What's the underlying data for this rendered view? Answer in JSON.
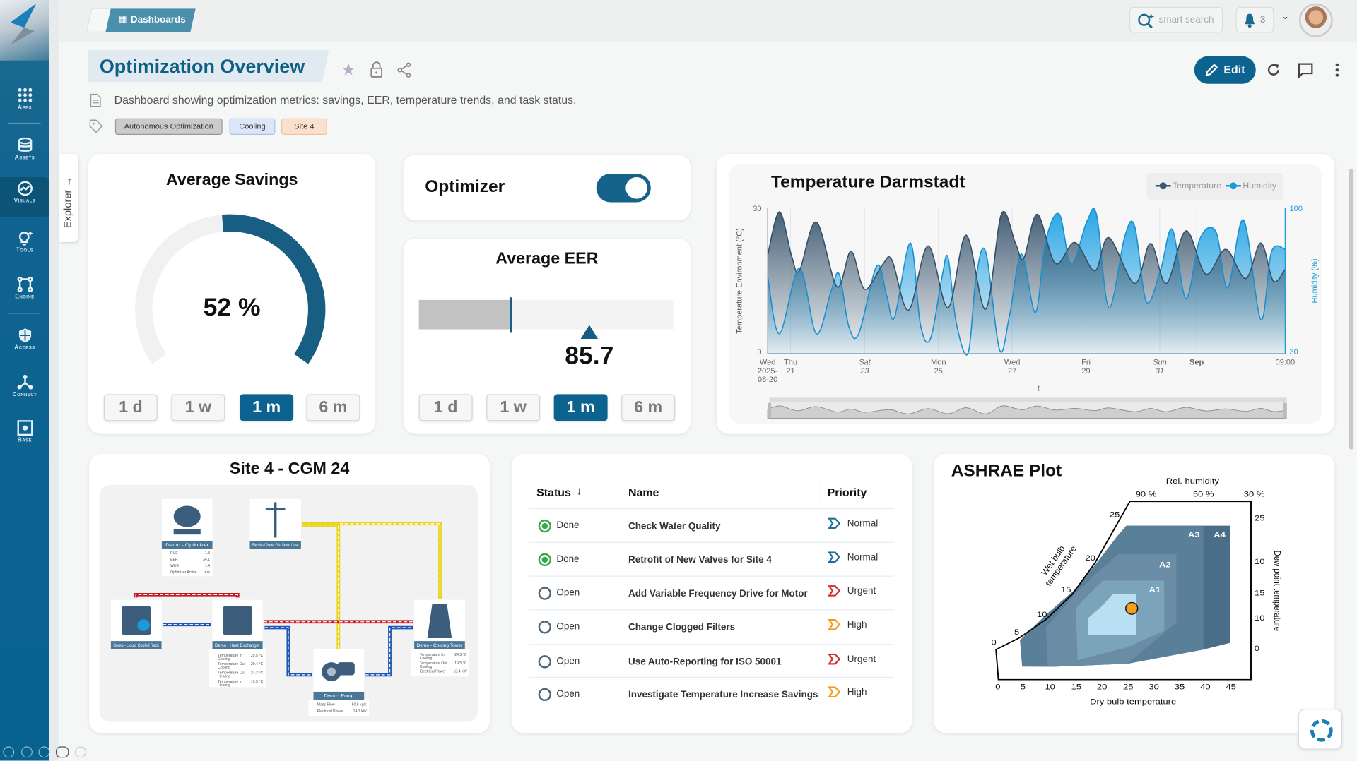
{
  "sidebar": {
    "items": [
      {
        "label": "Apps",
        "icon": "apps-grid-icon"
      },
      {
        "label": "Assets",
        "icon": "database-icon"
      },
      {
        "label": "Visuals",
        "icon": "chart-circle-icon"
      },
      {
        "label": "Tools",
        "icon": "lightbulb-icon"
      },
      {
        "label": "Engine",
        "icon": "engine-icon"
      },
      {
        "label": "Access",
        "icon": "shield-icon"
      },
      {
        "label": "Connect",
        "icon": "connect-icon"
      },
      {
        "label": "Base",
        "icon": "base-icon"
      }
    ],
    "active": "Visuals"
  },
  "explorer_tab": "Explorer →",
  "topbar": {
    "breadcrumb": "Dashboards",
    "search_placeholder": "smart search",
    "notification_count": "3"
  },
  "page": {
    "title": "Optimization Overview",
    "description": "Dashboard showing optimization metrics: savings, EER, temperature trends, and task status.",
    "tags": [
      "Autonomous Optimization",
      "Cooling",
      "Site 4"
    ],
    "edit_label": "Edit"
  },
  "savings": {
    "title": "Average Savings",
    "value_text": "52 %",
    "value_percent": 52,
    "ranges": [
      "1 d",
      "1 w",
      "1 m",
      "6 m"
    ],
    "active_range": 2
  },
  "optimizer": {
    "label": "Optimizer",
    "enabled": true
  },
  "eer": {
    "title": "Average EER",
    "value_text": "85.7",
    "bar_fraction": 0.36,
    "marker_fraction": 0.67,
    "ranges": [
      "1 d",
      "1 w",
      "1 m",
      "6 m"
    ],
    "active_range": 2
  },
  "chart_data": [
    {
      "type": "area",
      "title": "Temperature Darmstadt",
      "xlabel": "t",
      "ylabel": "Temperature Environment (°C)",
      "y2label": "Humidity (%)",
      "x_unit": "days since 2025-08-20 09:00",
      "xlim": [
        0,
        14.03
      ],
      "ylim": [
        0,
        30
      ],
      "y2lim": [
        30,
        100
      ],
      "yticks": [
        "0",
        "30"
      ],
      "y2ticks": [
        "30",
        "100"
      ],
      "xticks": [
        {
          "x": 0,
          "lines": [
            "Wed",
            "2025-",
            "08-20"
          ],
          "style": "normal"
        },
        {
          "x": 0.62,
          "lines": [
            "Thu",
            "21"
          ],
          "style": "normal"
        },
        {
          "x": 2.63,
          "lines": [
            "Sat",
            "23"
          ],
          "style": "italic"
        },
        {
          "x": 4.63,
          "lines": [
            "Mon",
            "25"
          ],
          "style": "normal"
        },
        {
          "x": 6.63,
          "lines": [
            "Wed",
            "27"
          ],
          "style": "normal"
        },
        {
          "x": 8.63,
          "lines": [
            "Fri",
            "29"
          ],
          "style": "normal"
        },
        {
          "x": 10.63,
          "lines": [
            "Sun",
            "31"
          ],
          "style": "italic"
        },
        {
          "x": 11.63,
          "lines": [
            "Sep"
          ],
          "style": "bold"
        },
        {
          "x": 14.03,
          "lines": [
            "09:00"
          ],
          "style": "normal"
        }
      ],
      "legend": {
        "position": "top-right",
        "entries": [
          "Temperature",
          "Humidity"
        ]
      },
      "series": [
        {
          "name": "Temperature",
          "axis": "left",
          "color": "#3c5870",
          "x": [
            0,
            0.32,
            0.65,
            0.86,
            1.32,
            1.88,
            2.26,
            2.63,
            3.12,
            3.37,
            3.82,
            4.35,
            4.89,
            5.38,
            5.91,
            6.34,
            6.72,
            6.94,
            7.31,
            7.8,
            8.33,
            8.87,
            9.25,
            9.95,
            10.38,
            10.81,
            11.34,
            11.88,
            12.42,
            12.96,
            13.37,
            13.71,
            14.03
          ],
          "y": [
            20.2,
            29.1,
            20,
            17,
            27,
            13.7,
            21,
            13.2,
            18.3,
            19.2,
            8.9,
            22.1,
            9.4,
            24.3,
            9.1,
            28.7,
            22.6,
            19.5,
            28.6,
            18.5,
            22.8,
            17,
            23.8,
            14.4,
            22.6,
            14.4,
            25.2,
            16.3,
            21.4,
            15.4,
            22.7,
            14.9,
            17.3
          ]
        },
        {
          "name": "Humidity",
          "axis": "right",
          "color": "#1a9ad6",
          "x": [
            0,
            0.32,
            0.86,
            1.32,
            1.72,
            1.94,
            2.2,
            2.47,
            2.96,
            3.23,
            3.44,
            3.87,
            4.14,
            4.41,
            4.73,
            4.89,
            5.11,
            5.43,
            5.65,
            5.91,
            6.29,
            6.56,
            6.88,
            7.26,
            7.53,
            7.9,
            8.23,
            8.66,
            8.92,
            9.25,
            9.68,
            9.95,
            10.27,
            10.65,
            10.97,
            11.34,
            11.72,
            12.15,
            12.47,
            12.9,
            13.37,
            13.66,
            14.03
          ],
          "y": [
            67,
            39.5,
            71,
            39.5,
            60,
            68,
            43,
            39.5,
            72,
            57.5,
            47.4,
            83,
            44,
            37,
            67,
            76,
            45,
            30,
            66.5,
            78.8,
            31.7,
            48.5,
            77.7,
            49.7,
            83.4,
            96.9,
            73,
            93.5,
            96.3,
            52,
            86,
            91,
            54.7,
            70,
            89.5,
            56.4,
            85,
            88.4,
            61.5,
            94,
            46.3,
            78.8,
            80
          ]
        }
      ]
    },
    {
      "type": "psychrometric",
      "title": "ASHRAE Plot",
      "xlabel": "Dry bulb temperature",
      "xticks": [
        "0",
        "5",
        "10",
        "15",
        "20",
        "25",
        "30",
        "35",
        "40",
        "45"
      ],
      "wet_bulb_label": "Wet bulb temperature",
      "wet_bulb_ticks": [
        "0",
        "5",
        "10",
        "15",
        "20",
        "25"
      ],
      "rh_label": "Rel. humidity",
      "rh_ticks": [
        "90 %",
        "50 %",
        "30 %"
      ],
      "dew_point_label": "Dew point temperature",
      "dew_point_ticks": [
        "25",
        "10",
        "15",
        "10",
        "0"
      ],
      "zones": [
        "A1",
        "A2",
        "A3",
        "A4"
      ],
      "point": {
        "dry_bulb": 25.5,
        "zone": "recommended"
      }
    }
  ],
  "site": {
    "title": "Site 4 - CGM 24",
    "nodes": [
      {
        "label": "Demo - Optimizer",
        "stats": [
          [
            "PUE",
            "1.3"
          ],
          [
            "EER",
            "34.1"
          ],
          [
            "WUE",
            "1.4"
          ],
          [
            "Optimizer Active",
            "true"
          ]
        ]
      },
      {
        "label": "Electrical Power Grid Demo Case",
        "stats": []
      },
      {
        "label": "Demo - Liquid Cooled Rack",
        "stats": []
      },
      {
        "label": "Demo - Heat Exchanger",
        "stats": [
          [
            "Temperature In Cooling",
            "25.5 °C"
          ],
          [
            "Temperature Out Cooling",
            "20.4 °C"
          ],
          [
            "Temperature Out Heating",
            "24.3 °C"
          ],
          [
            "Temperature In Heating",
            "19.5 °C"
          ]
        ]
      },
      {
        "label": "Demo - Pump",
        "stats": [
          [
            "Mass Flow",
            "50.6 kg/s"
          ],
          [
            "Electrical Power",
            "14.7 kW"
          ]
        ]
      },
      {
        "label": "Demo - Cooling Tower",
        "stats": [
          [
            "Temperature In Cooling",
            "24.3 °C"
          ],
          [
            "Temperature Out Cooling",
            "19.5 °C"
          ],
          [
            "Electrical Power",
            "13.4 kW"
          ]
        ]
      }
    ]
  },
  "tasks": {
    "columns": {
      "status": "Status",
      "name": "Name",
      "priority": "Priority"
    },
    "rows": [
      {
        "status": "Done",
        "name": "Check Water Quality",
        "priority": "Normal"
      },
      {
        "status": "Done",
        "name": "Retrofit of New Valves for Site 4",
        "priority": "Normal"
      },
      {
        "status": "Open",
        "name": "Add Variable Frequency Drive for Motor",
        "priority": "Urgent"
      },
      {
        "status": "Open",
        "name": "Change Clogged Filters",
        "priority": "High"
      },
      {
        "status": "Open",
        "name": "Use Auto-Reporting for ISO 50001",
        "priority": "Urgent"
      },
      {
        "status": "Open",
        "name": "Investigate Temperature Increase Savings",
        "priority": "High"
      }
    ]
  },
  "colors": {
    "brand": "#0d6390",
    "title": "#0d5f86",
    "done": "#3aa84a",
    "normal": "#1f6f9a",
    "urgent": "#d32f2f",
    "high": "#f59c1a",
    "humidity": "#1a9ad6",
    "temperature": "#3c5870",
    "point": "#f5a01a"
  }
}
